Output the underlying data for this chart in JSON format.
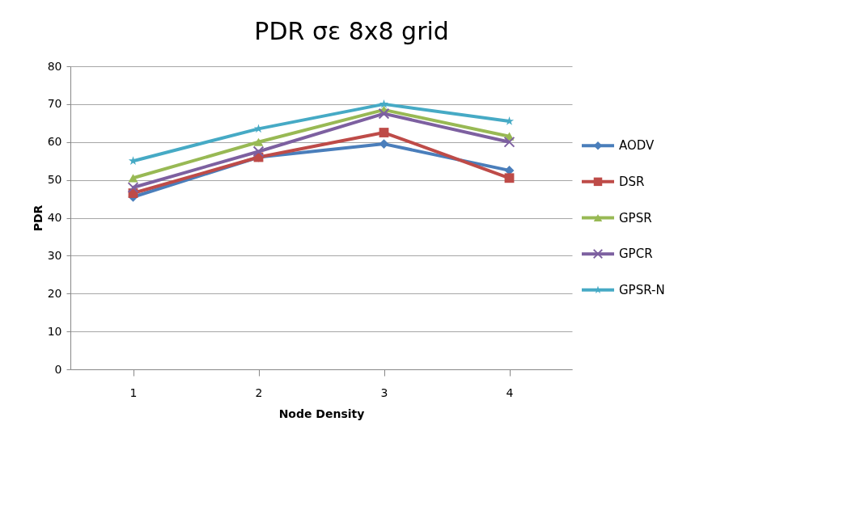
{
  "chart_data": {
    "type": "line",
    "title": "PDR σε 8x8 grid",
    "xlabel": "Node Density",
    "ylabel": "PDR",
    "categories": [
      "1",
      "2",
      "3",
      "4"
    ],
    "series": [
      {
        "name": "AODV",
        "color": "#4a7ebb",
        "marker": "diamond",
        "values": [
          45.5,
          56,
          59.5,
          52.5
        ]
      },
      {
        "name": "DSR",
        "color": "#be4b48",
        "marker": "square",
        "values": [
          46.5,
          56,
          62.5,
          50.5
        ]
      },
      {
        "name": "GPSR",
        "color": "#98b954",
        "marker": "triangle",
        "values": [
          50.5,
          60,
          68.5,
          61.5
        ]
      },
      {
        "name": "GPCR",
        "color": "#7d60a0",
        "marker": "cross",
        "values": [
          48,
          57.5,
          67.5,
          60
        ]
      },
      {
        "name": "GPSR-N",
        "color": "#46aac5",
        "marker": "star",
        "values": [
          55,
          63.5,
          70,
          65.5
        ]
      }
    ],
    "ylim": [
      0,
      80
    ],
    "yticks": [
      0,
      10,
      20,
      30,
      40,
      50,
      60,
      70,
      80
    ],
    "grid": "y",
    "legend": "right",
    "line_style": "solid"
  }
}
